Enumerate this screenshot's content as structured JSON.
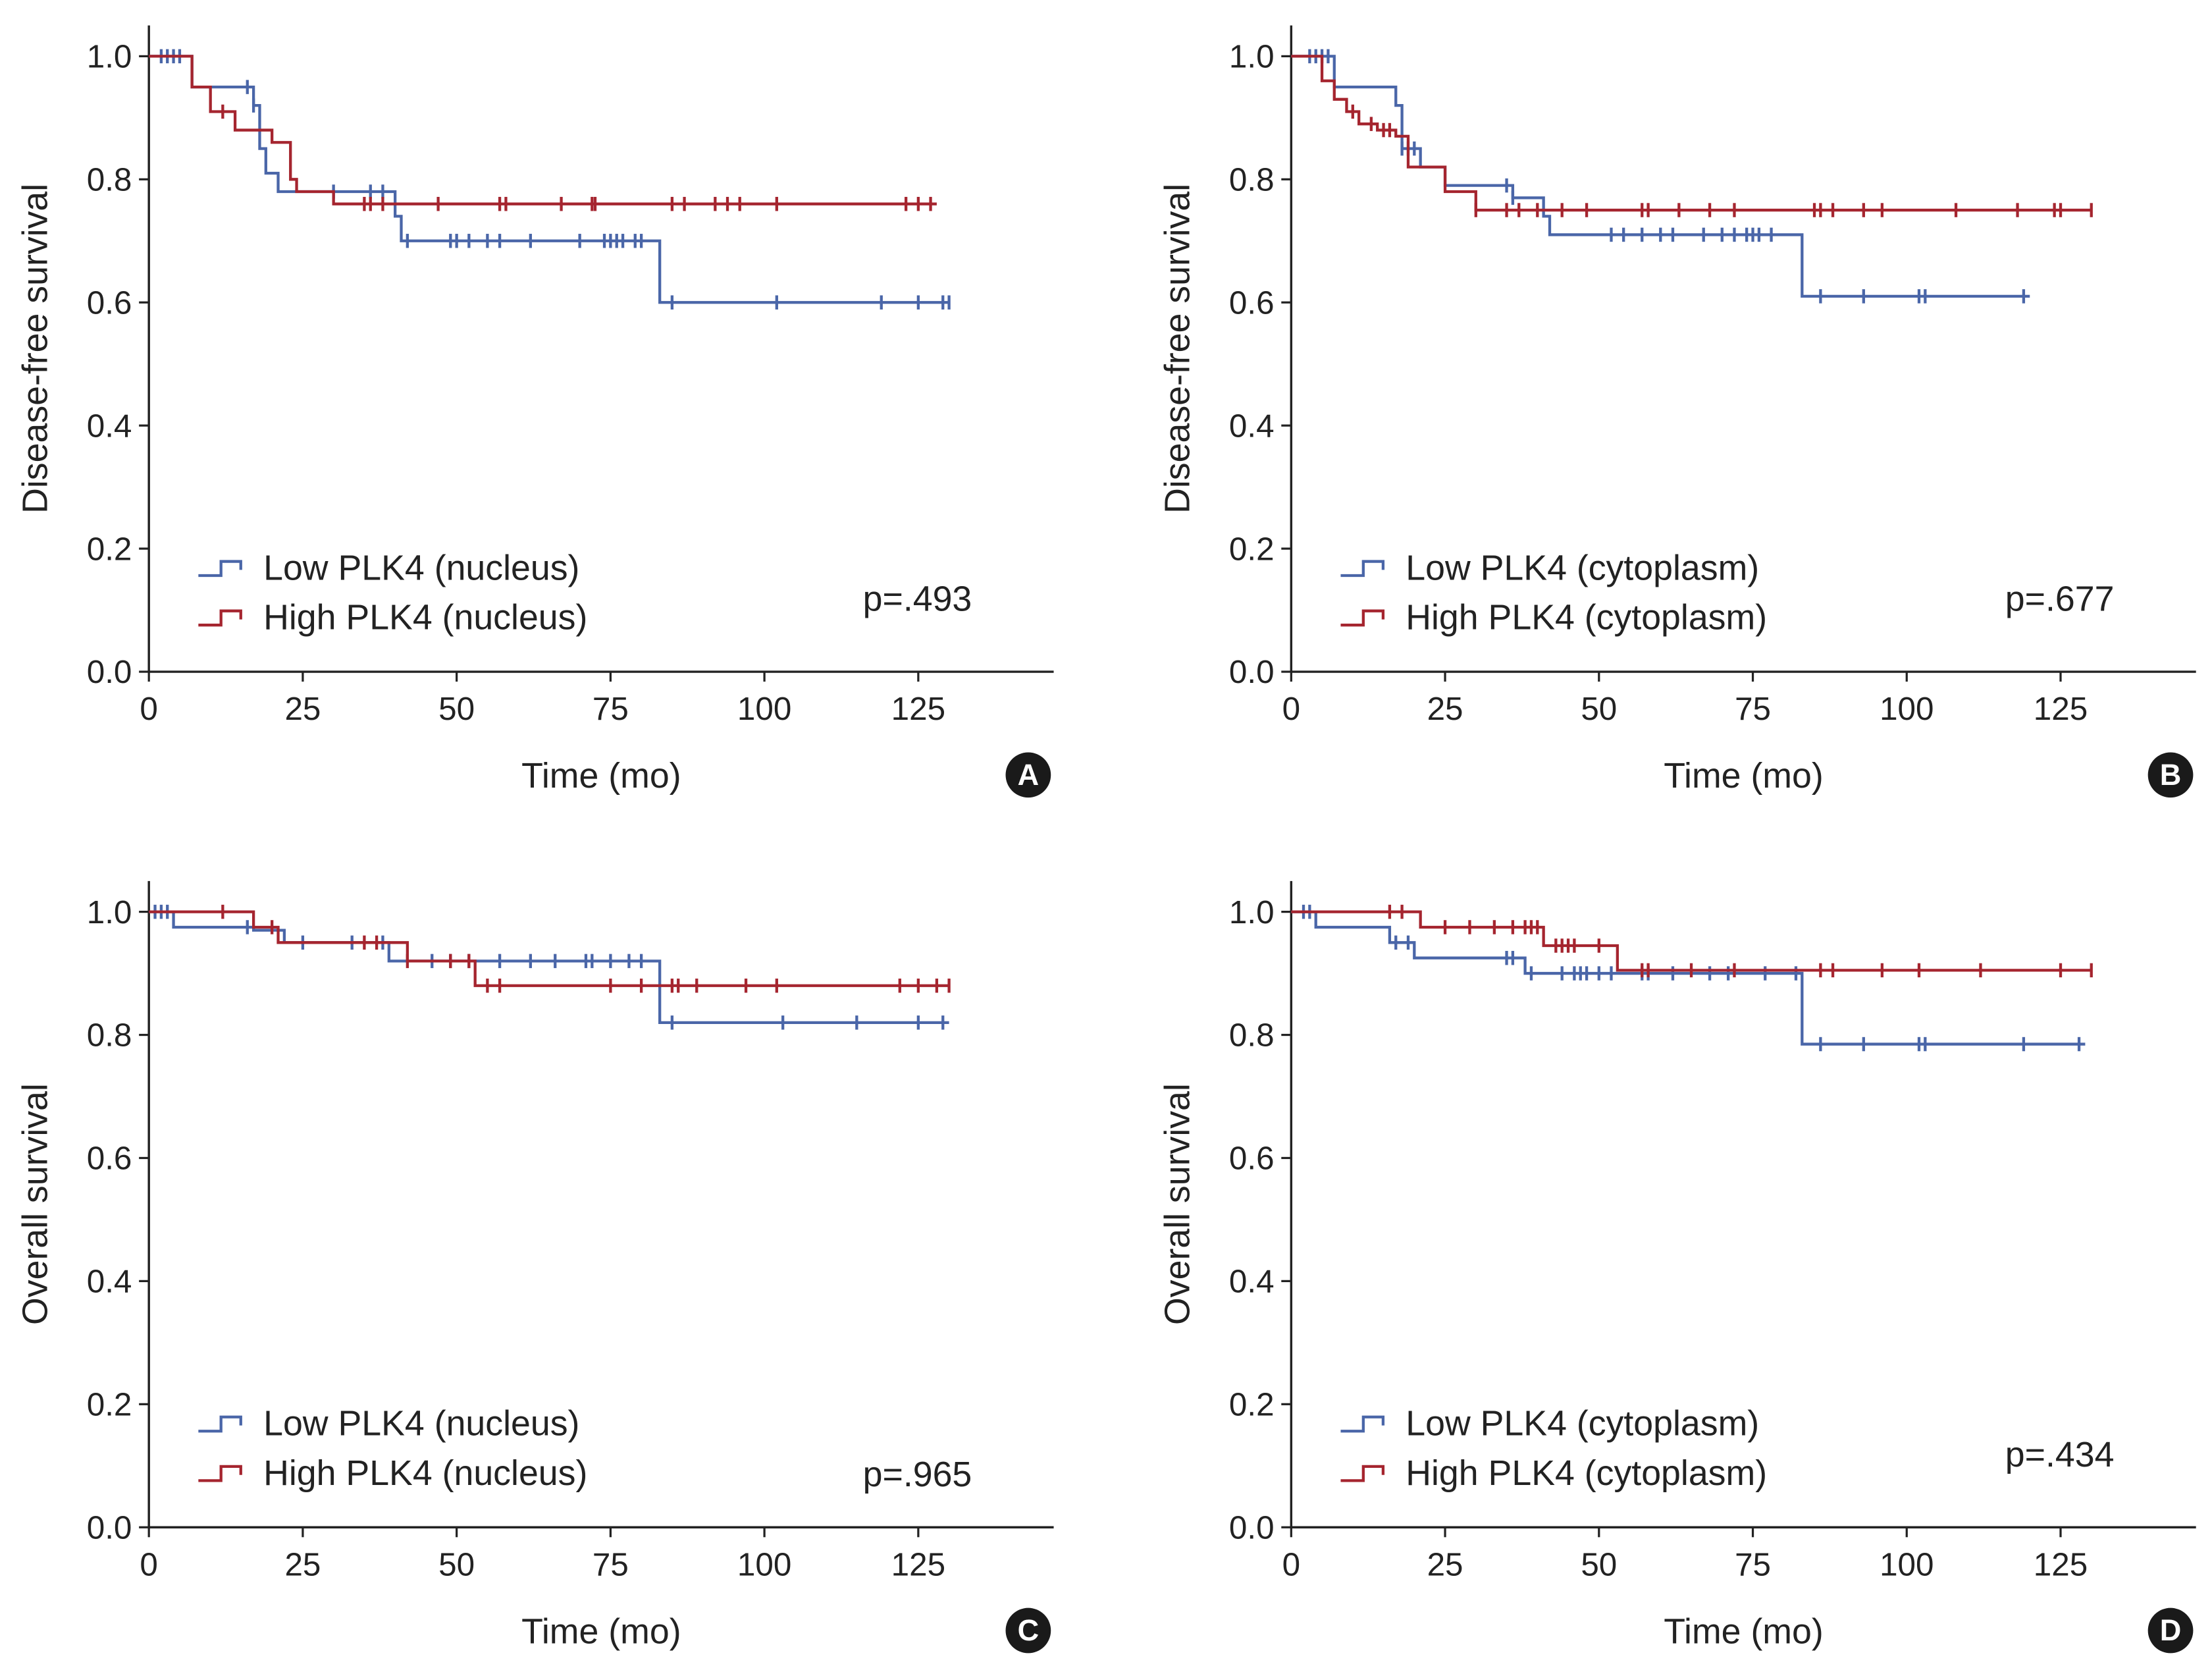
{
  "colors": {
    "low": "#4a66a8",
    "high": "#a5252f",
    "axis": "#222222",
    "badge": "#1a1a1a",
    "badge_text": "#ffffff"
  },
  "chart_data": [
    {
      "panel": "A",
      "type": "line",
      "subtype": "kaplan-meier",
      "xlabel": "Time (mo)",
      "ylabel": "Disease-free survival",
      "xlim": [
        0,
        147
      ],
      "ylim": [
        0,
        1.05
      ],
      "xticks": [
        0,
        25,
        50,
        75,
        100,
        125
      ],
      "xtick_labels": [
        "0",
        "25",
        "50",
        "75",
        "100",
        "125"
      ],
      "yticks": [
        0,
        0.2,
        0.4,
        0.6,
        0.8,
        1.0
      ],
      "ytick_labels": [
        "0.0",
        "0.2",
        "0.4",
        "0.6",
        "0.8",
        "1.0"
      ],
      "p_value": "p=.493",
      "legend_position": "lower-left",
      "series": [
        {
          "name": "Low PLK4 (nucleus)",
          "color_key": "low",
          "steps": [
            [
              0,
              1.0
            ],
            [
              7,
              0.95
            ],
            [
              17,
              0.92
            ],
            [
              18,
              0.85
            ],
            [
              19,
              0.81
            ],
            [
              21,
              0.78
            ],
            [
              40,
              0.74
            ],
            [
              41,
              0.7
            ],
            [
              83,
              0.6
            ],
            [
              130,
              0.6
            ]
          ],
          "censor": [
            2,
            3,
            4,
            5,
            16,
            17,
            30,
            36,
            38,
            42,
            49,
            50,
            52,
            55,
            57,
            62,
            70,
            74,
            75,
            76,
            77,
            79,
            80,
            85,
            102,
            119,
            125,
            129,
            130
          ]
        },
        {
          "name": "High PLK4 (nucleus)",
          "color_key": "high",
          "steps": [
            [
              0,
              1.0
            ],
            [
              7,
              0.95
            ],
            [
              10,
              0.91
            ],
            [
              14,
              0.88
            ],
            [
              20,
              0.86
            ],
            [
              23,
              0.8
            ],
            [
              24,
              0.78
            ],
            [
              30,
              0.76
            ],
            [
              128,
              0.76
            ]
          ],
          "censor": [
            12,
            35,
            36,
            38,
            47,
            57,
            58,
            67,
            72,
            72.5,
            85,
            87,
            92,
            94,
            96,
            102,
            123,
            125,
            127
          ]
        }
      ]
    },
    {
      "panel": "B",
      "type": "line",
      "subtype": "kaplan-meier",
      "xlabel": "Time (mo)",
      "ylabel": "Disease-free survival",
      "xlim": [
        0,
        147
      ],
      "ylim": [
        0,
        1.05
      ],
      "xticks": [
        0,
        25,
        50,
        75,
        100,
        125
      ],
      "xtick_labels": [
        "0",
        "25",
        "50",
        "75",
        "100",
        "125"
      ],
      "yticks": [
        0,
        0.2,
        0.4,
        0.6,
        0.8,
        1.0
      ],
      "ytick_labels": [
        "0.0",
        "0.2",
        "0.4",
        "0.6",
        "0.8",
        "1.0"
      ],
      "p_value": "p=.677",
      "legend_position": "lower-left",
      "series": [
        {
          "name": "Low PLK4 (cytoplasm)",
          "color_key": "low",
          "steps": [
            [
              0,
              1.0
            ],
            [
              7,
              0.95
            ],
            [
              17,
              0.92
            ],
            [
              18,
              0.85
            ],
            [
              21,
              0.82
            ],
            [
              25,
              0.79
            ],
            [
              36,
              0.77
            ],
            [
              41,
              0.74
            ],
            [
              42,
              0.71
            ],
            [
              83,
              0.61
            ],
            [
              120,
              0.61
            ]
          ],
          "censor": [
            3,
            4,
            5,
            6,
            18,
            19,
            20,
            35,
            36,
            52,
            54,
            57,
            60,
            62,
            67,
            70,
            72,
            74,
            75,
            76,
            78,
            86,
            93,
            102,
            103,
            119
          ]
        },
        {
          "name": "High PLK4 (cytoplasm)",
          "color_key": "high",
          "steps": [
            [
              0,
              1.0
            ],
            [
              5,
              0.96
            ],
            [
              7,
              0.93
            ],
            [
              9,
              0.91
            ],
            [
              11,
              0.89
            ],
            [
              14,
              0.88
            ],
            [
              17,
              0.87
            ],
            [
              19,
              0.82
            ],
            [
              25,
              0.78
            ],
            [
              30,
              0.75
            ],
            [
              130,
              0.75
            ]
          ],
          "censor": [
            10,
            13,
            15,
            16,
            30,
            35,
            37,
            40,
            44,
            48,
            57,
            58,
            63,
            68,
            72,
            85,
            86,
            88,
            93,
            96,
            108,
            118,
            124,
            125,
            130
          ]
        }
      ]
    },
    {
      "panel": "C",
      "type": "line",
      "subtype": "kaplan-meier",
      "xlabel": "Time (mo)",
      "ylabel": "Overall survival",
      "xlim": [
        0,
        147
      ],
      "ylim": [
        0,
        1.05
      ],
      "xticks": [
        0,
        25,
        50,
        75,
        100,
        125
      ],
      "xtick_labels": [
        "0",
        "25",
        "50",
        "75",
        "100",
        "125"
      ],
      "yticks": [
        0,
        0.2,
        0.4,
        0.6,
        0.8,
        1.0
      ],
      "ytick_labels": [
        "0.0",
        "0.2",
        "0.4",
        "0.6",
        "0.8",
        "1.0"
      ],
      "p_value": "p=.965",
      "legend_position": "lower-left",
      "series": [
        {
          "name": "Low PLK4 (nucleus)",
          "color_key": "low",
          "steps": [
            [
              0,
              1.0
            ],
            [
              4,
              0.975
            ],
            [
              17,
              0.97
            ],
            [
              22,
              0.95
            ],
            [
              39,
              0.92
            ],
            [
              83,
              0.82
            ],
            [
              130,
              0.82
            ]
          ],
          "censor": [
            1,
            2,
            3,
            16,
            25,
            33,
            38,
            46,
            49,
            52,
            57,
            62,
            66,
            71,
            72,
            75,
            78,
            80,
            85,
            103,
            115,
            125,
            129
          ]
        },
        {
          "name": "High PLK4 (nucleus)",
          "color_key": "high",
          "steps": [
            [
              0,
              1.0
            ],
            [
              17,
              0.975
            ],
            [
              21,
              0.95
            ],
            [
              42,
              0.92
            ],
            [
              53,
              0.88
            ],
            [
              130,
              0.88
            ]
          ],
          "censor": [
            12,
            20,
            35,
            37,
            42,
            49,
            52,
            55,
            57,
            75,
            80,
            85,
            86,
            89,
            97,
            102,
            122,
            125,
            128,
            130
          ]
        }
      ]
    },
    {
      "panel": "D",
      "type": "line",
      "subtype": "kaplan-meier",
      "xlabel": "Time (mo)",
      "ylabel": "Overall survival",
      "xlim": [
        0,
        147
      ],
      "ylim": [
        0,
        1.05
      ],
      "xticks": [
        0,
        25,
        50,
        75,
        100,
        125
      ],
      "xtick_labels": [
        "0",
        "25",
        "50",
        "75",
        "100",
        "125"
      ],
      "yticks": [
        0,
        0.2,
        0.4,
        0.6,
        0.8,
        1.0
      ],
      "ytick_labels": [
        "0.0",
        "0.2",
        "0.4",
        "0.6",
        "0.8",
        "1.0"
      ],
      "p_value": "p=.434",
      "legend_position": "lower-left",
      "series": [
        {
          "name": "Low PLK4 (cytoplasm)",
          "color_key": "low",
          "steps": [
            [
              0,
              1.0
            ],
            [
              4,
              0.975
            ],
            [
              16,
              0.95
            ],
            [
              20,
              0.925
            ],
            [
              38,
              0.9
            ],
            [
              83,
              0.785
            ],
            [
              129,
              0.785
            ]
          ],
          "censor": [
            2,
            3,
            17,
            19,
            35,
            36,
            39,
            44,
            46,
            47,
            48,
            50,
            52,
            57,
            58,
            62,
            68,
            71,
            77,
            82,
            86,
            93,
            102,
            103,
            119,
            128
          ]
        },
        {
          "name": "High PLK4 (cytoplasm)",
          "color_key": "high",
          "steps": [
            [
              0,
              1.0
            ],
            [
              21,
              0.975
            ],
            [
              41,
              0.945
            ],
            [
              53,
              0.905
            ],
            [
              130,
              0.905
            ]
          ],
          "censor": [
            16,
            18,
            25,
            29,
            33,
            36,
            38,
            39,
            40,
            43,
            44,
            45,
            46,
            50,
            57,
            58,
            65,
            72,
            86,
            88,
            96,
            102,
            112,
            125,
            130
          ]
        }
      ]
    }
  ]
}
